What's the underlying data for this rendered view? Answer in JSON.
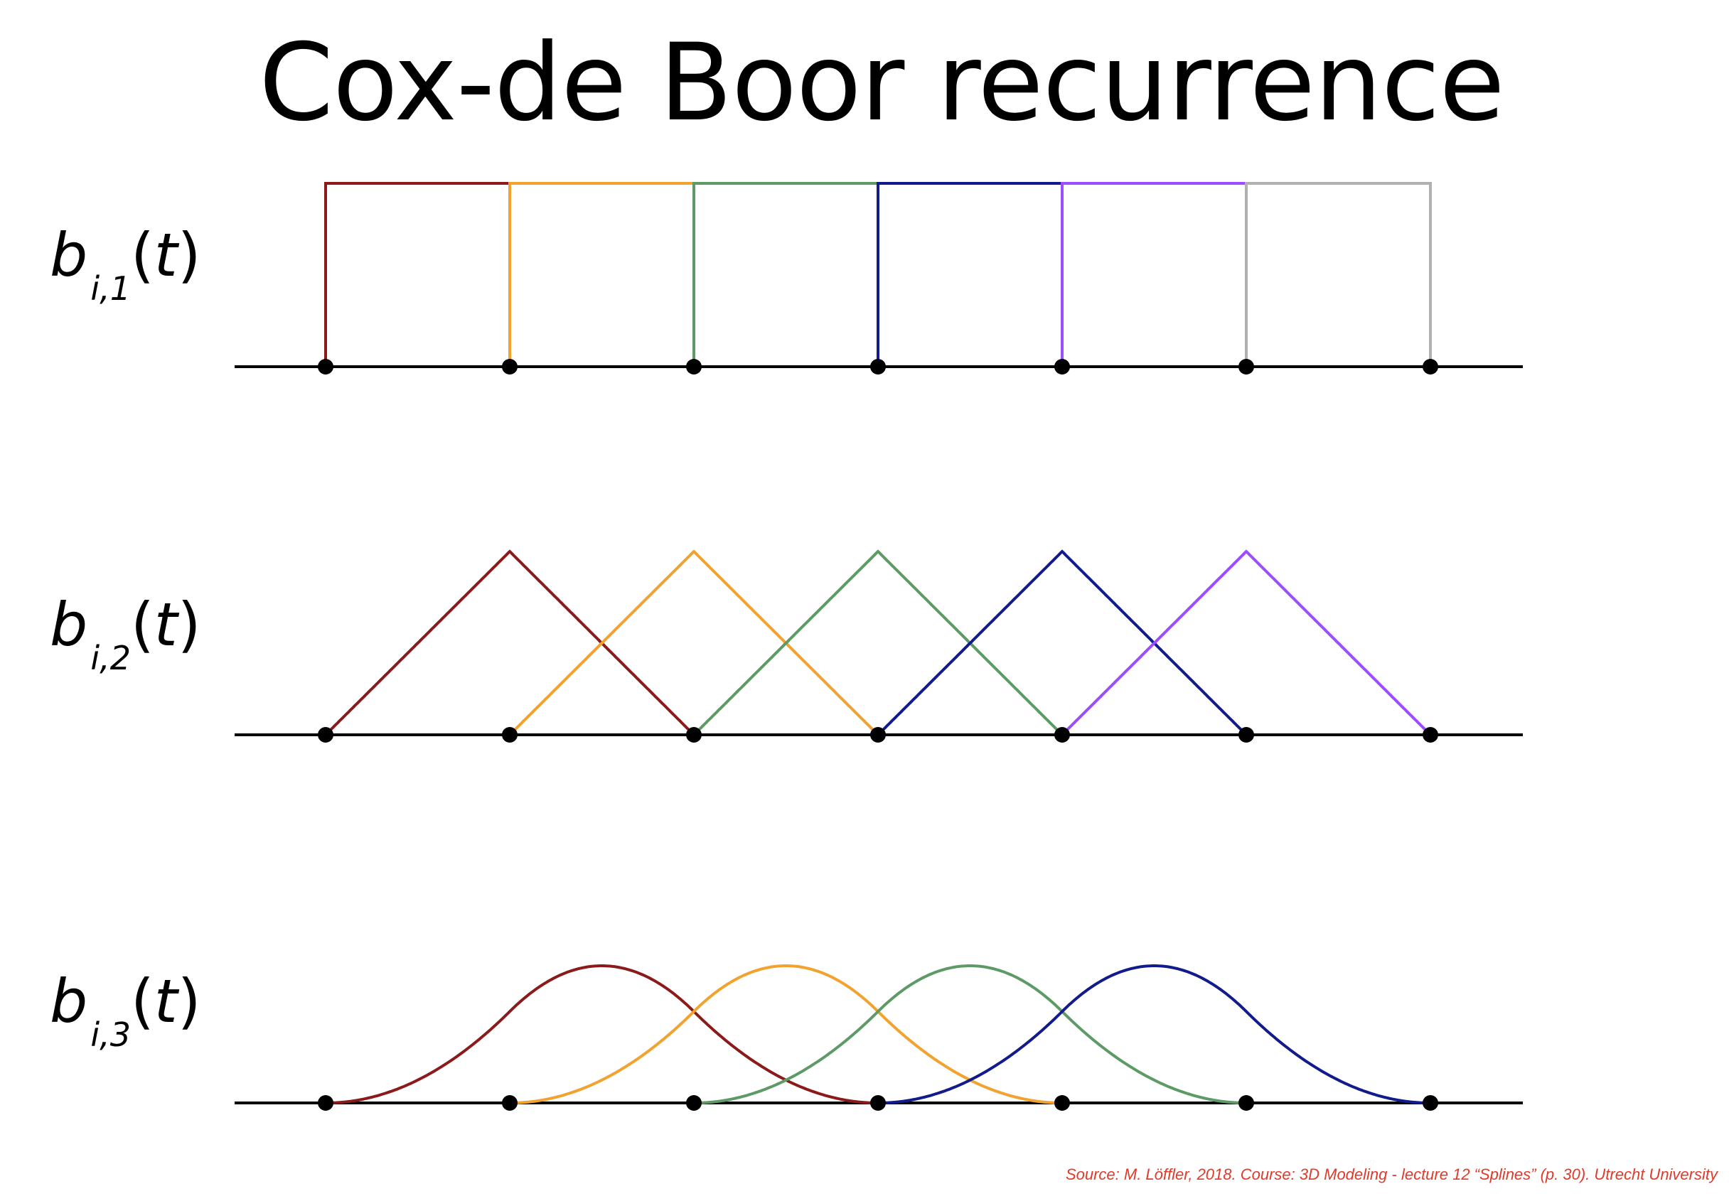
{
  "title": "Cox-de Boor recurrence",
  "rows": [
    {
      "fn": "b",
      "sub": "i,1",
      "arg_open": "(",
      "arg": "t",
      "arg_close": ")"
    },
    {
      "fn": "b",
      "sub": "i,2",
      "arg_open": "(",
      "arg": "t",
      "arg_close": ")"
    },
    {
      "fn": "b",
      "sub": "i,3",
      "arg_open": "(",
      "arg": "t",
      "arg_close": ")"
    }
  ],
  "source": "Source: M. Löffler, 2018. Course: 3D Modeling - lecture 12 “Splines” (p. 30). Utrecht University",
  "chart_data": {
    "type": "line",
    "knots": [
      0,
      1,
      2,
      3,
      4,
      5,
      6
    ],
    "colors": [
      "#8b1a1a",
      "#f2a22f",
      "#5e9a66",
      "#111b8c",
      "#9b4dff",
      "#b0b0b0"
    ],
    "panels": [
      {
        "degree_order": 1,
        "basis_count": 6
      },
      {
        "degree_order": 2,
        "basis_count": 5
      },
      {
        "degree_order": 3,
        "basis_count": 4
      }
    ]
  }
}
